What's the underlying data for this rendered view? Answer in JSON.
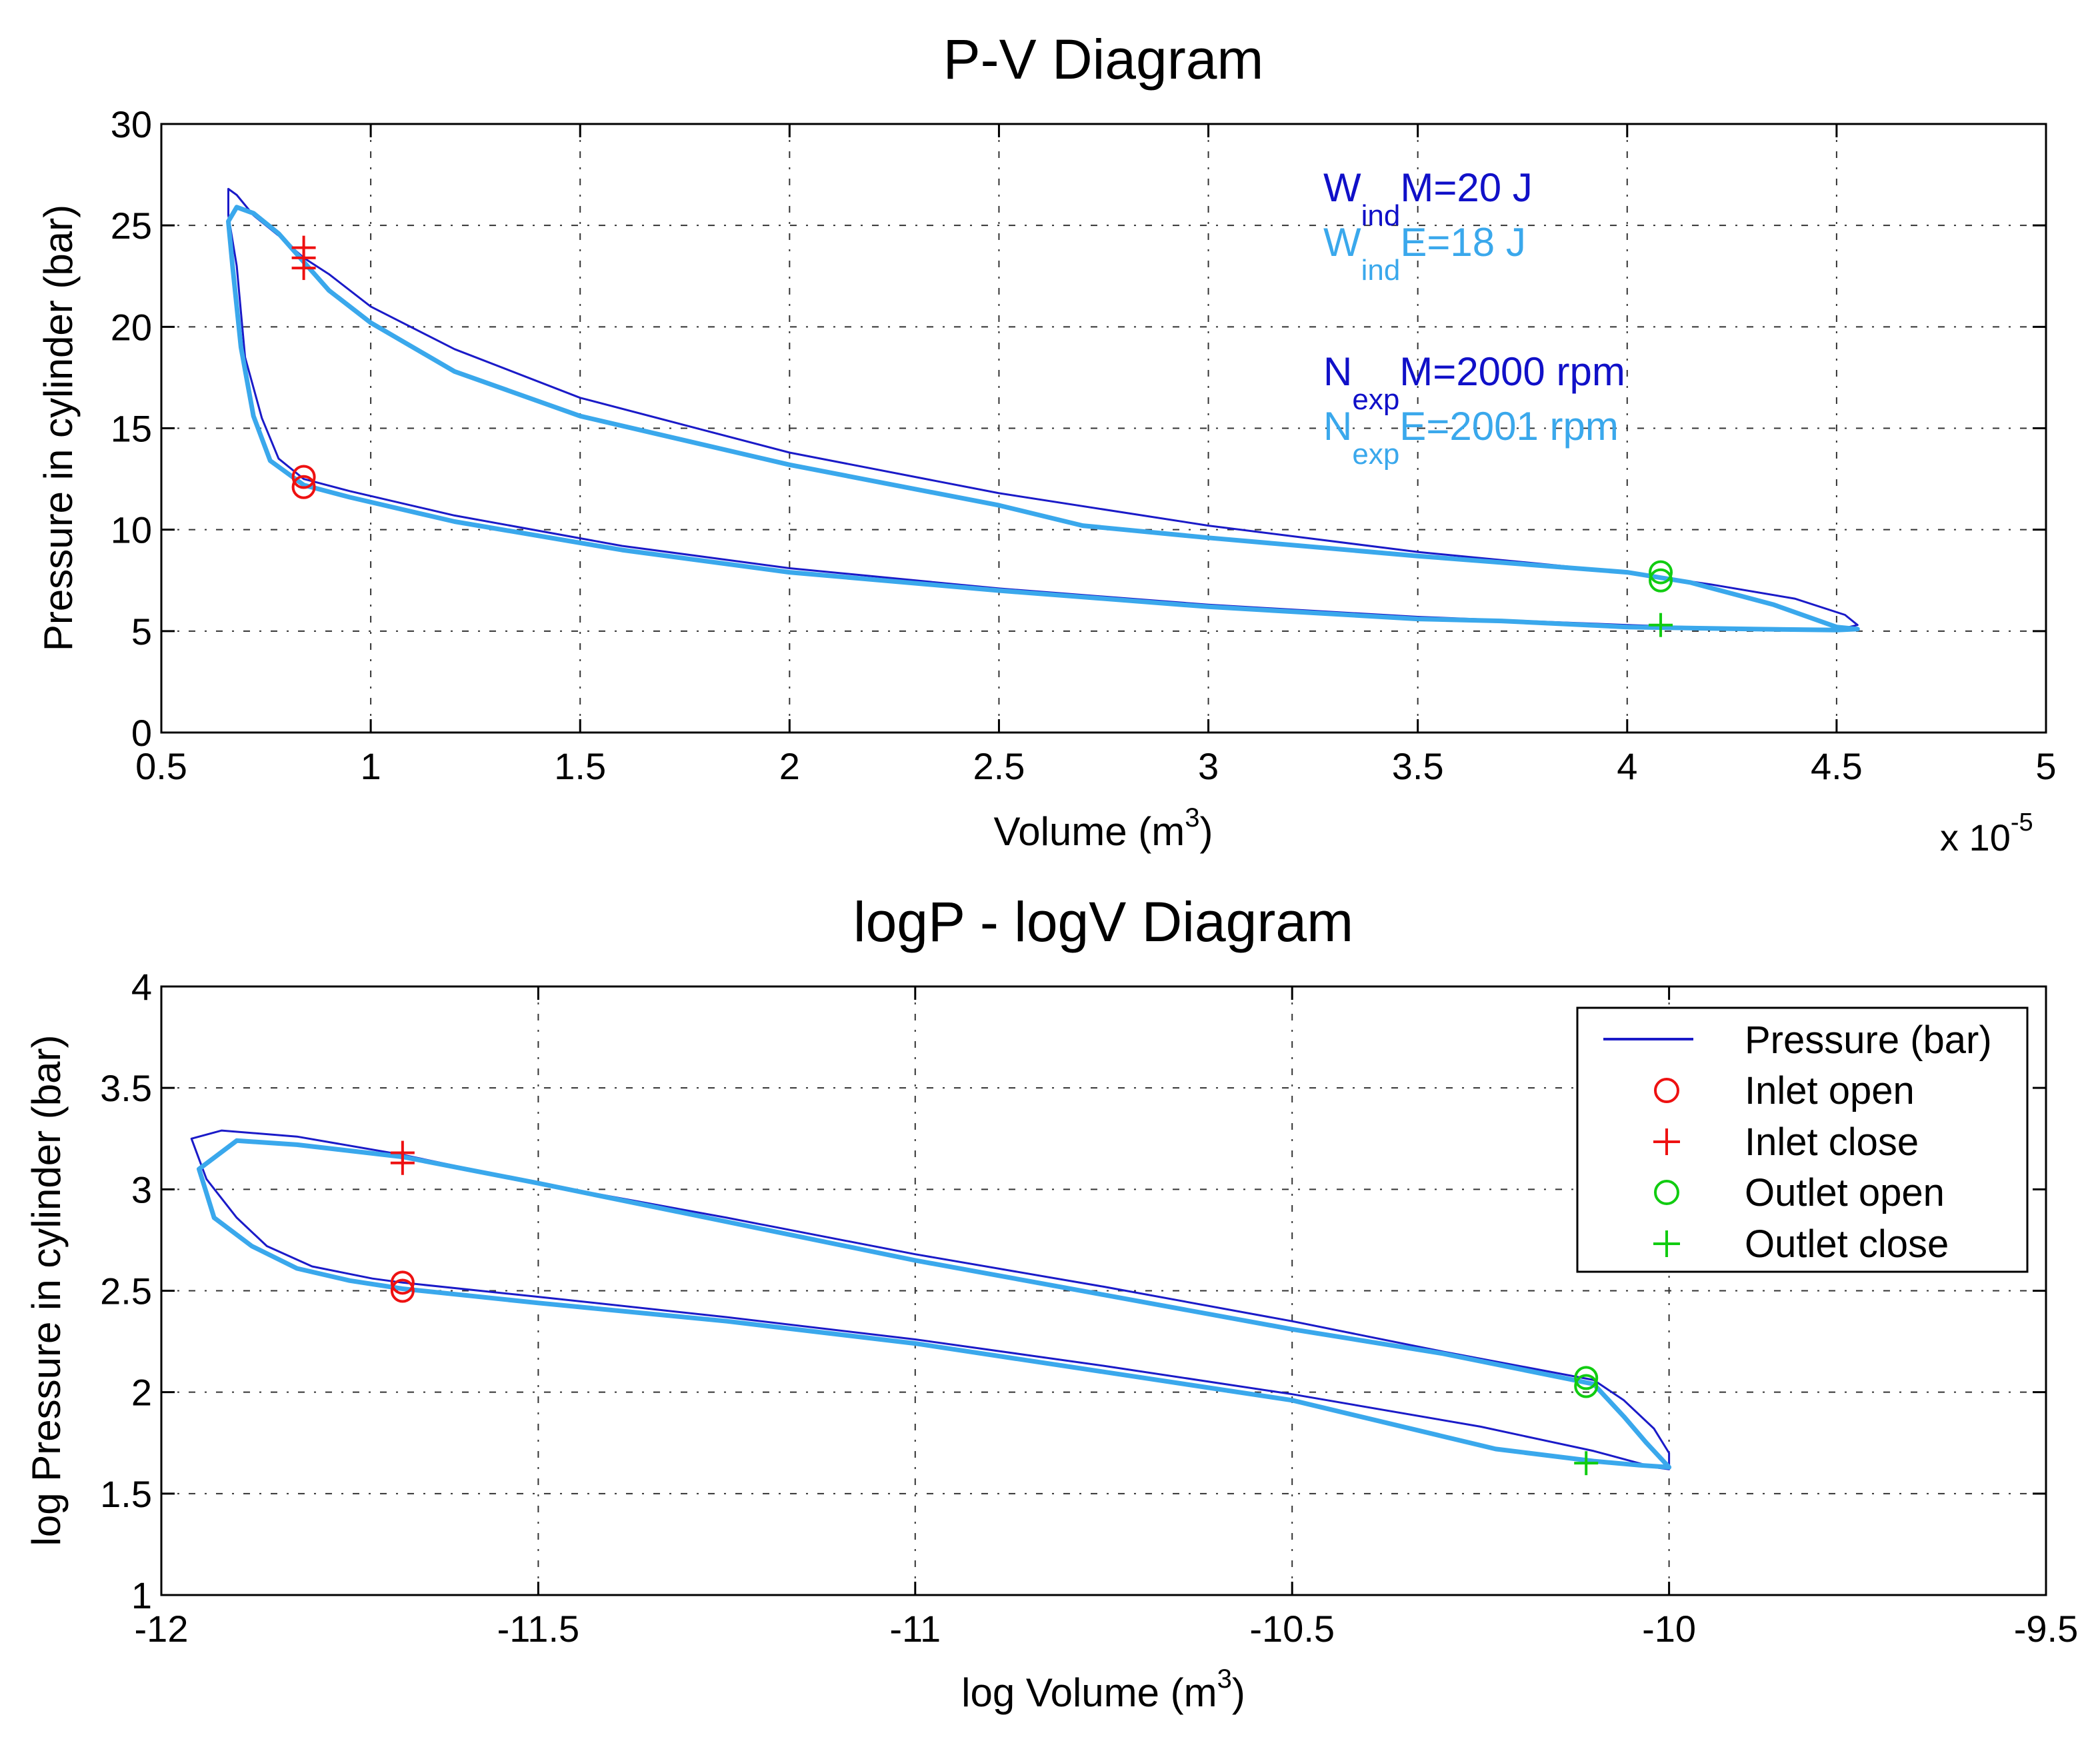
{
  "chart_data": [
    {
      "type": "line",
      "title": "P-V Diagram",
      "xlabel": "Volume (m",
      "xlabel_sup": "3",
      "xlabel_end": ")",
      "ylabel": "Pressure in cylinder (bar)",
      "x_multiplier": "x 10",
      "x_multiplier_exp": "-5",
      "xlim": [
        0.5,
        5
      ],
      "ylim": [
        0,
        30
      ],
      "grid": true,
      "xticks": [
        0.5,
        1,
        1.5,
        2,
        2.5,
        3,
        3.5,
        4,
        4.5,
        5
      ],
      "xtick_labels": [
        "0.5",
        "1",
        "1.5",
        "2",
        "2.5",
        "3",
        "3.5",
        "4",
        "4.5",
        "5"
      ],
      "yticks": [
        0,
        5,
        10,
        15,
        20,
        25,
        30
      ],
      "ytick_labels": [
        "0",
        "5",
        "10",
        "15",
        "20",
        "25",
        "30"
      ],
      "annotations": [
        {
          "base": "W",
          "sub": "ind",
          "text": "M=20 J",
          "color": "#1010c8"
        },
        {
          "base": "W",
          "sub": "ind",
          "text": "E=18 J",
          "color": "#3aa8ec"
        },
        {
          "base": "N",
          "sub": "exp",
          "text": "M=2000 rpm",
          "color": "#1010c8"
        },
        {
          "base": "N",
          "sub": "exp",
          "text": "E=2001 rpm",
          "color": "#3aa8ec"
        }
      ],
      "series": [
        {
          "role": "model",
          "color": "#1a1ac8",
          "x": [
            0.84,
            0.95,
            1.2,
            1.6,
            2.0,
            2.5,
            3.0,
            3.5,
            4.0,
            4.3,
            4.5,
            4.55,
            4.52,
            4.4,
            4.2,
            4.0,
            3.5,
            3.0,
            2.5,
            2.0,
            1.5,
            1.2,
            1.0,
            0.9,
            0.84,
            0.78,
            0.72,
            0.68,
            0.66,
            0.66,
            0.68,
            0.7,
            0.74,
            0.78,
            0.84
          ],
          "y": [
            12.5,
            11.9,
            10.7,
            9.2,
            8.1,
            7.1,
            6.3,
            5.7,
            5.3,
            5.1,
            5.05,
            5.3,
            5.8,
            6.6,
            7.3,
            7.9,
            8.9,
            10.2,
            11.8,
            13.8,
            16.5,
            18.9,
            21.0,
            22.6,
            23.4,
            24.5,
            25.5,
            26.5,
            26.8,
            25.5,
            23.0,
            18.5,
            15.5,
            13.5,
            12.5
          ]
        },
        {
          "role": "experimental",
          "color": "#3aa8ec",
          "x": [
            0.84,
            0.95,
            1.2,
            1.6,
            2.0,
            2.5,
            3.0,
            3.5,
            3.7,
            4.0,
            4.3,
            4.5,
            4.55,
            4.5,
            4.35,
            4.15,
            4.0,
            3.5,
            3.0,
            2.8,
            2.7,
            2.5,
            2.0,
            1.5,
            1.2,
            1.0,
            0.9,
            0.84,
            0.78,
            0.72,
            0.68,
            0.66,
            0.67,
            0.69,
            0.72,
            0.76,
            0.84
          ],
          "y": [
            12.2,
            11.6,
            10.4,
            9.0,
            7.9,
            7.0,
            6.2,
            5.6,
            5.5,
            5.2,
            5.1,
            5.05,
            5.1,
            5.2,
            6.3,
            7.4,
            7.9,
            8.7,
            9.6,
            10.0,
            10.2,
            11.2,
            13.2,
            15.6,
            17.8,
            20.2,
            21.8,
            23.2,
            24.6,
            25.6,
            25.9,
            25.2,
            23.0,
            19.0,
            15.6,
            13.4,
            12.2
          ]
        }
      ],
      "markers": [
        {
          "type": "circle",
          "color": "#ee1111",
          "x": 0.84,
          "y": 12.6
        },
        {
          "type": "circle",
          "color": "#ee1111",
          "x": 0.84,
          "y": 12.1
        },
        {
          "type": "plus",
          "color": "#ee1111",
          "x": 0.84,
          "y": 23.9
        },
        {
          "type": "plus",
          "color": "#ee1111",
          "x": 0.84,
          "y": 23.4
        },
        {
          "type": "plus",
          "color": "#ee1111",
          "x": 0.84,
          "y": 22.9
        },
        {
          "type": "circle",
          "color": "#11cc11",
          "x": 4.08,
          "y": 7.9
        },
        {
          "type": "circle",
          "color": "#11cc11",
          "x": 4.08,
          "y": 7.5
        },
        {
          "type": "plus",
          "color": "#11cc11",
          "x": 4.08,
          "y": 5.3
        }
      ]
    },
    {
      "type": "line",
      "title": "logP - logV Diagram",
      "xlabel": "log Volume (m",
      "xlabel_sup": "3",
      "xlabel_end": ")",
      "ylabel": "log Pressure in cylinder (bar)",
      "xlim": [
        -12,
        -9.5
      ],
      "ylim": [
        1,
        4
      ],
      "grid": true,
      "xticks": [
        -12,
        -11.5,
        -11,
        -10.5,
        -10,
        -9.5
      ],
      "xtick_labels": [
        "-12",
        "-11.5",
        "-11",
        "-10.5",
        "-10",
        "-9.5"
      ],
      "yticks": [
        1,
        1.5,
        2,
        2.5,
        3,
        3.5,
        4
      ],
      "ytick_labels": [
        "1",
        "1.5",
        "2",
        "2.5",
        "3",
        "3.5",
        "4"
      ],
      "legend_position": "top-right",
      "legend": [
        {
          "label": "Pressure (bar)",
          "symbol": "line",
          "color": "#1a1ac8"
        },
        {
          "label": "Inlet open",
          "symbol": "circle",
          "color": "#ee1111"
        },
        {
          "label": "Inlet close",
          "symbol": "plus",
          "color": "#ee1111"
        },
        {
          "label": "Outlet open",
          "symbol": "circle",
          "color": "#11cc11"
        },
        {
          "label": "Outlet close",
          "symbol": "plus",
          "color": "#11cc11"
        }
      ],
      "series": [
        {
          "name": "Pressure (bar)",
          "role": "model",
          "color": "#1a1ac8",
          "x": [
            -11.68,
            -11.5,
            -11.25,
            -11.0,
            -10.75,
            -10.5,
            -10.25,
            -10.1,
            -10.02,
            -10.0,
            -10.0,
            -10.02,
            -10.06,
            -10.1,
            -10.3,
            -10.5,
            -10.75,
            -11.0,
            -11.25,
            -11.5,
            -11.68,
            -11.82,
            -11.92,
            -11.96,
            -11.94,
            -11.9,
            -11.86,
            -11.8,
            -11.72,
            -11.68
          ],
          "y": [
            2.54,
            2.47,
            2.37,
            2.26,
            2.13,
            1.99,
            1.83,
            1.71,
            1.63,
            1.62,
            1.7,
            1.82,
            1.96,
            2.06,
            2.2,
            2.35,
            2.52,
            2.68,
            2.86,
            3.03,
            3.17,
            3.26,
            3.29,
            3.25,
            3.05,
            2.86,
            2.72,
            2.62,
            2.56,
            2.54
          ]
        },
        {
          "role": "experimental",
          "color": "#3aa8ec",
          "x": [
            -11.68,
            -11.5,
            -11.25,
            -11.0,
            -10.75,
            -10.5,
            -10.23,
            -10.1,
            -10.04,
            -10.0,
            -10.03,
            -10.06,
            -10.1,
            -10.3,
            -10.5,
            -10.75,
            -11.0,
            -11.25,
            -11.5,
            -11.68,
            -11.82,
            -11.9,
            -11.95,
            -11.93,
            -11.88,
            -11.82,
            -11.75,
            -11.68
          ],
          "y": [
            2.51,
            2.44,
            2.35,
            2.24,
            2.1,
            1.96,
            1.72,
            1.66,
            1.64,
            1.63,
            1.75,
            1.88,
            2.04,
            2.19,
            2.31,
            2.48,
            2.65,
            2.84,
            3.03,
            3.16,
            3.22,
            3.24,
            3.1,
            2.86,
            2.72,
            2.61,
            2.55,
            2.51
          ]
        }
      ],
      "markers": [
        {
          "type": "circle",
          "color": "#ee1111",
          "x": -11.68,
          "y": 2.54
        },
        {
          "type": "circle",
          "color": "#ee1111",
          "x": -11.68,
          "y": 2.5
        },
        {
          "type": "plus",
          "color": "#ee1111",
          "x": -11.68,
          "y": 3.18
        },
        {
          "type": "plus",
          "color": "#ee1111",
          "x": -11.68,
          "y": 3.13
        },
        {
          "type": "circle",
          "color": "#11cc11",
          "x": -10.11,
          "y": 2.07
        },
        {
          "type": "circle",
          "color": "#11cc11",
          "x": -10.11,
          "y": 2.03
        },
        {
          "type": "plus",
          "color": "#11cc11",
          "x": -10.11,
          "y": 1.65
        }
      ]
    }
  ]
}
